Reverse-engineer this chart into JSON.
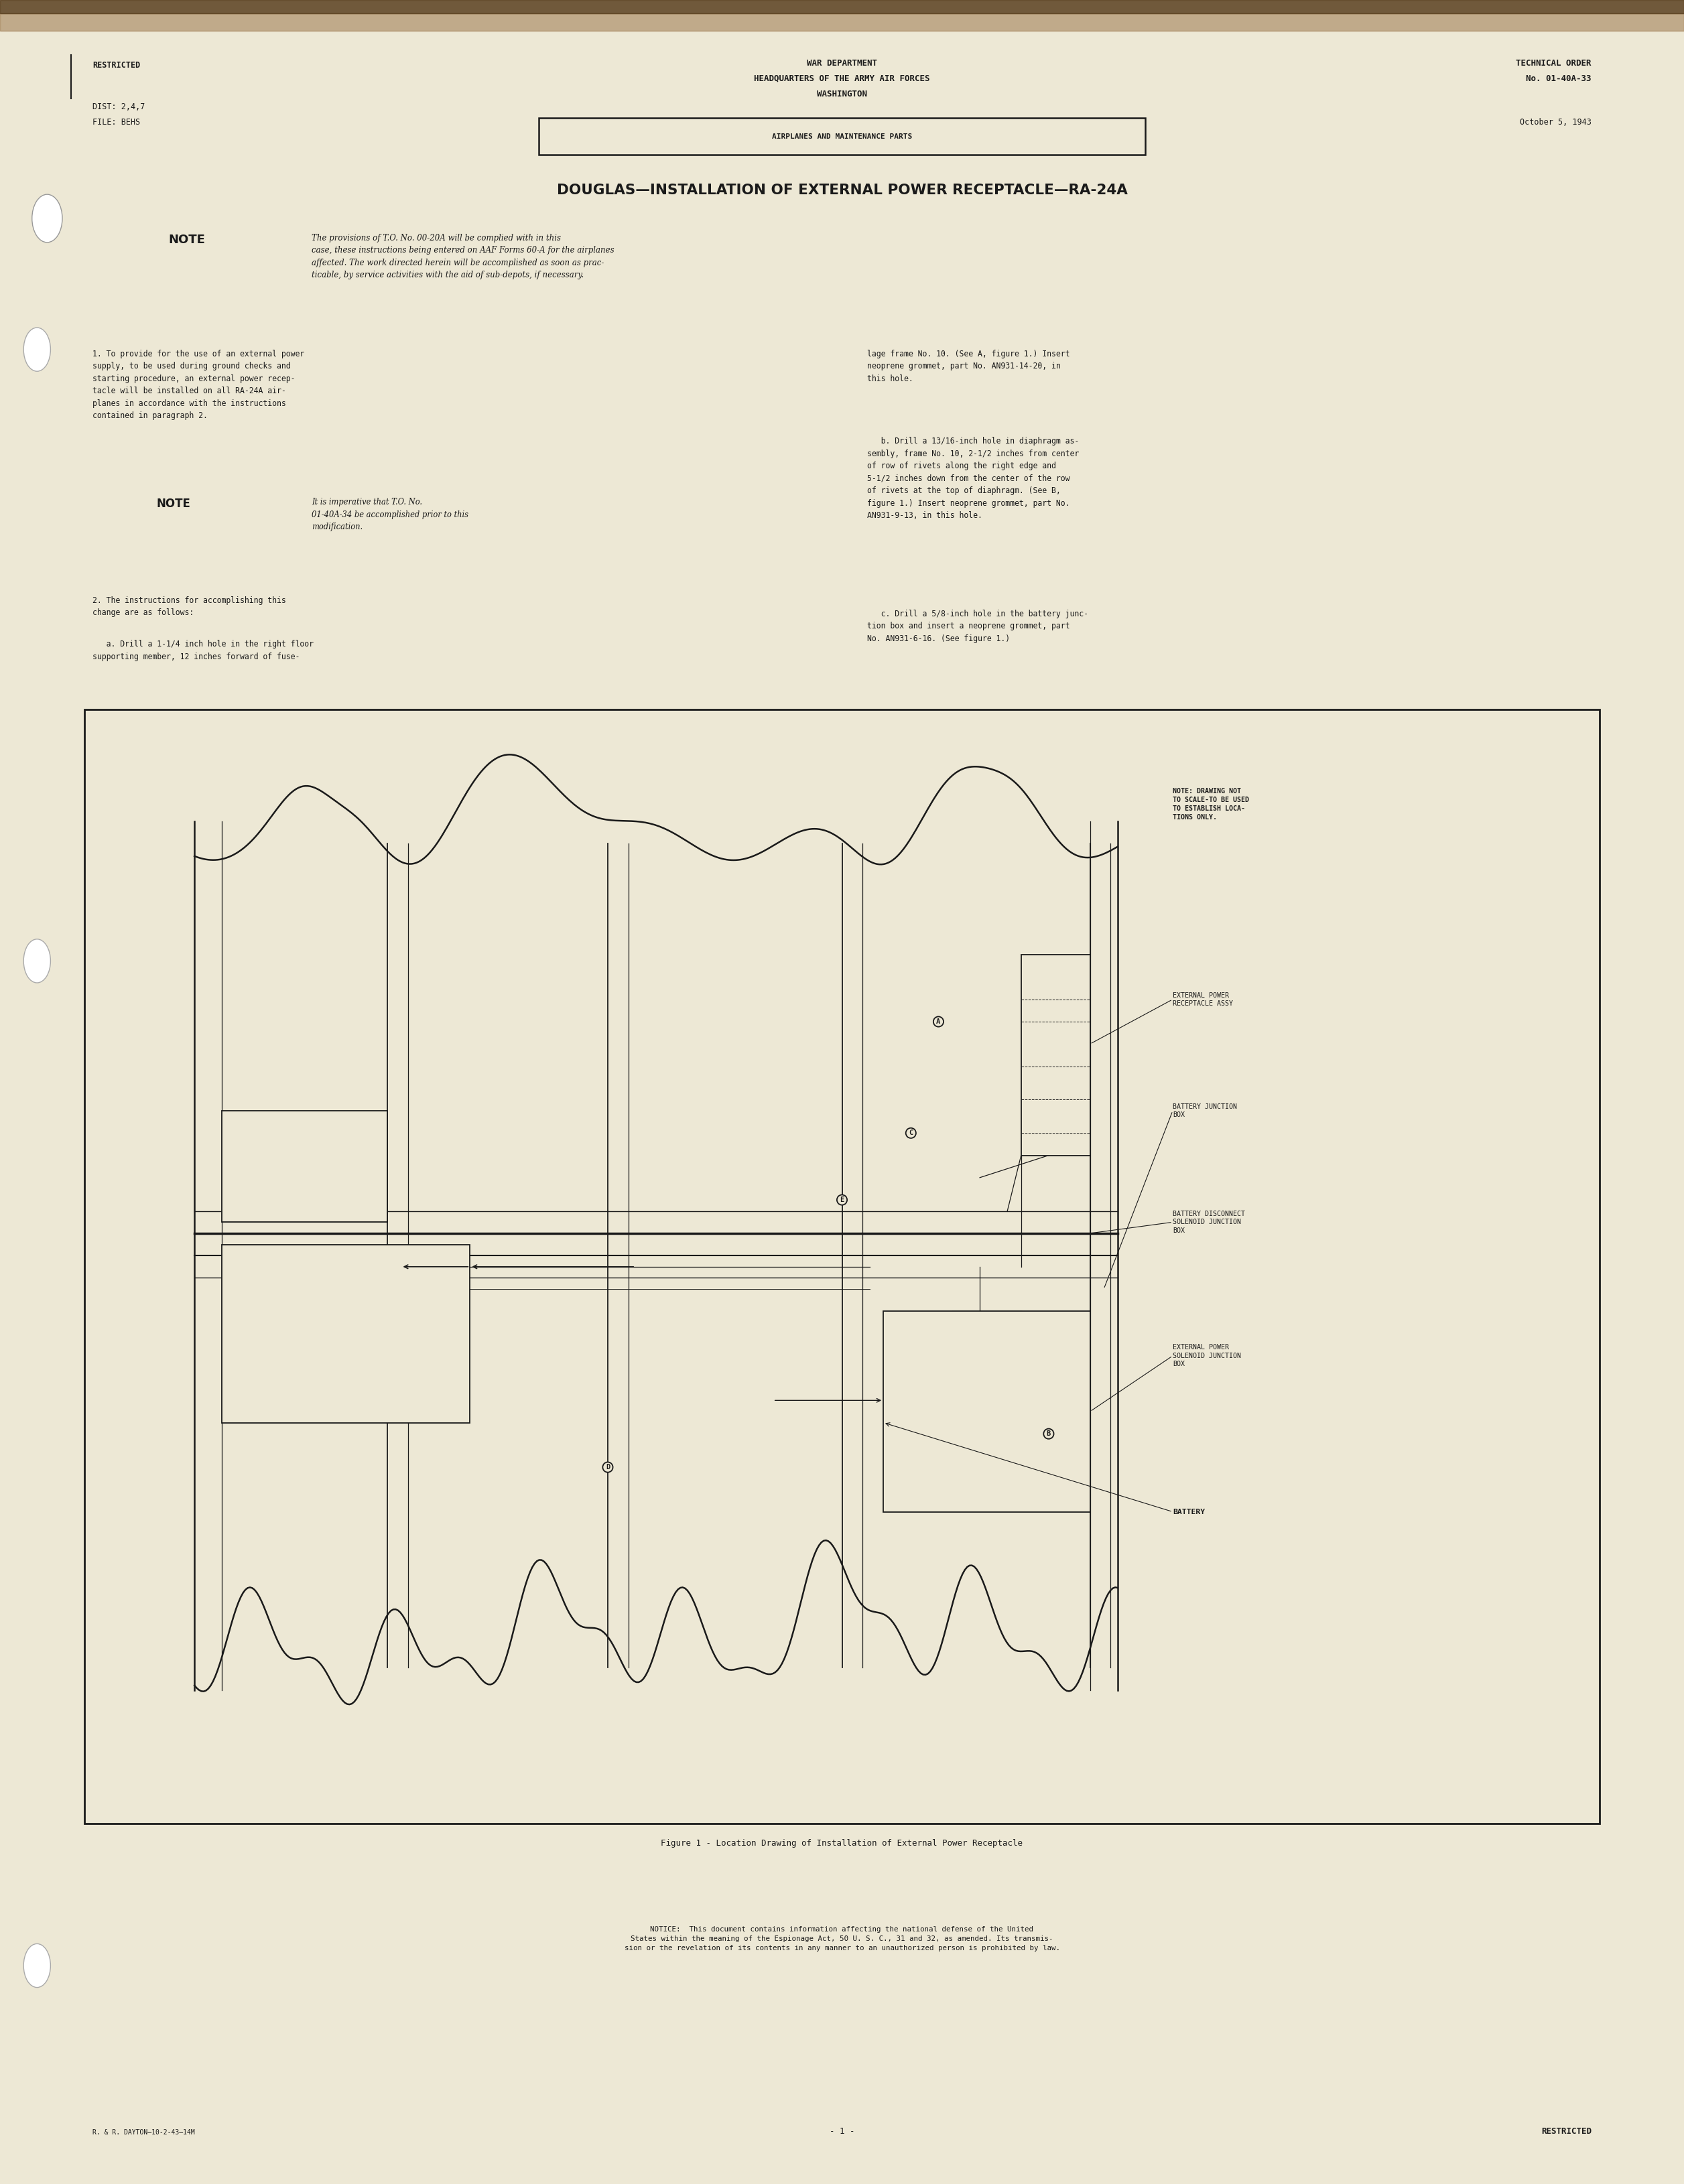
{
  "bg_color": "#ede8d5",
  "text_color": "#1a1a1a",
  "page_width": 25.13,
  "page_height": 32.6,
  "header_restricted": "RESTRICTED",
  "header_center_line1": "WAR DEPARTMENT",
  "header_center_line2": "HEADQUARTERS OF THE ARMY AIR FORCES",
  "header_center_line3": "WASHINGTON",
  "header_right_line1": "TECHNICAL ORDER",
  "header_right_line2": "No. 01-40A-33",
  "dist_line": "DIST: 2,4,7",
  "file_line": "FILE: BEHS",
  "date_line": "October 5, 1943",
  "subject_box_text": "AIRPLANES AND MAINTENANCE PARTS",
  "main_title": "DOUGLAS—INSTALLATION OF EXTERNAL POWER RECEPTACLE—RA-24A",
  "note1_bold": "NOTE",
  "note1_text": "The provisions of T.O. No. 00-20A will be complied with in this\ncase, these instructions being entered on AAF Forms 60-A for the airplanes\naffected. The work directed herein will be accomplished as soon as prac-\nticable, by service activities with the aid of sub-depots, if necessary.",
  "para1_left": "1. To provide for the use of an external power\nsupply, to be used during ground checks and\nstarting procedure, an external power recep-\ntacle will be installed on all RA-24A air-\nplanes in accordance with the instructions\ncontained in paragraph 2.",
  "note2_bold": "NOTE",
  "note2_text": "It is imperative that T.O. No.\n01-40A-34 be accomplished prior to this\nmodification.",
  "para2_text": "2. The instructions for accomplishing this\nchange are as follows:",
  "para2a_text": "   a. Drill a 1-1/4 inch hole in the right floor\nsupporting member, 12 inches forward of fuse-",
  "para1_right": "lage frame No. 10. (See A, figure 1.) Insert\nneoprene grommet, part No. AN931-14-20, in\nthis hole.",
  "para_b_right": "   b. Drill a 13/16-inch hole in diaphragm as-\nsembly, frame No. 10, 2-1/2 inches from center\nof row of rivets along the right edge and\n5-1/2 inches down from the center of the row\nof rivets at the top of diaphragm. (See B,\nfigure 1.) Insert neoprene grommet, part No.\nAN931-9-13, in this hole.",
  "para_c_right": "   c. Drill a 5/8-inch hole in the battery junc-\ntion box and insert a neoprene grommet, part\nNo. AN931-6-16. (See figure 1.)",
  "figure_caption": "Figure 1 - Location Drawing of Installation of External Power Receptacle",
  "diagram_note": "NOTE: DRAWING NOT\nTO SCALE-TO BE USED\nTO ESTABLISH LOCA-\nTIONS ONLY.",
  "label_A_text": "EXTERNAL POWER\nRECEPTACLE ASSY",
  "label_B_text": "BATTERY JUNCTION\nBOX",
  "label_C_text": "BATTERY DISCONNECT\nSOLENOID JUNCTION\nBOX",
  "label_D_text": "EXTERNAL POWER\nSOLENOID JUNCTION\nBOX",
  "label_E_text": "BATTERY",
  "notice_text": "NOTICE:  This document contains information affecting the national defense of the United\nStates within the meaning of the Espionage Act, 50 U. S. C., 31 and 32, as amended. Its transmis-\nsion or the revelation of its contents in any manner to an unauthorized person is prohibited by law.",
  "footer_left": "R. & R. DAYTON—10-2-43—14M",
  "footer_center": "- 1 -",
  "footer_right": "RESTRICTED"
}
